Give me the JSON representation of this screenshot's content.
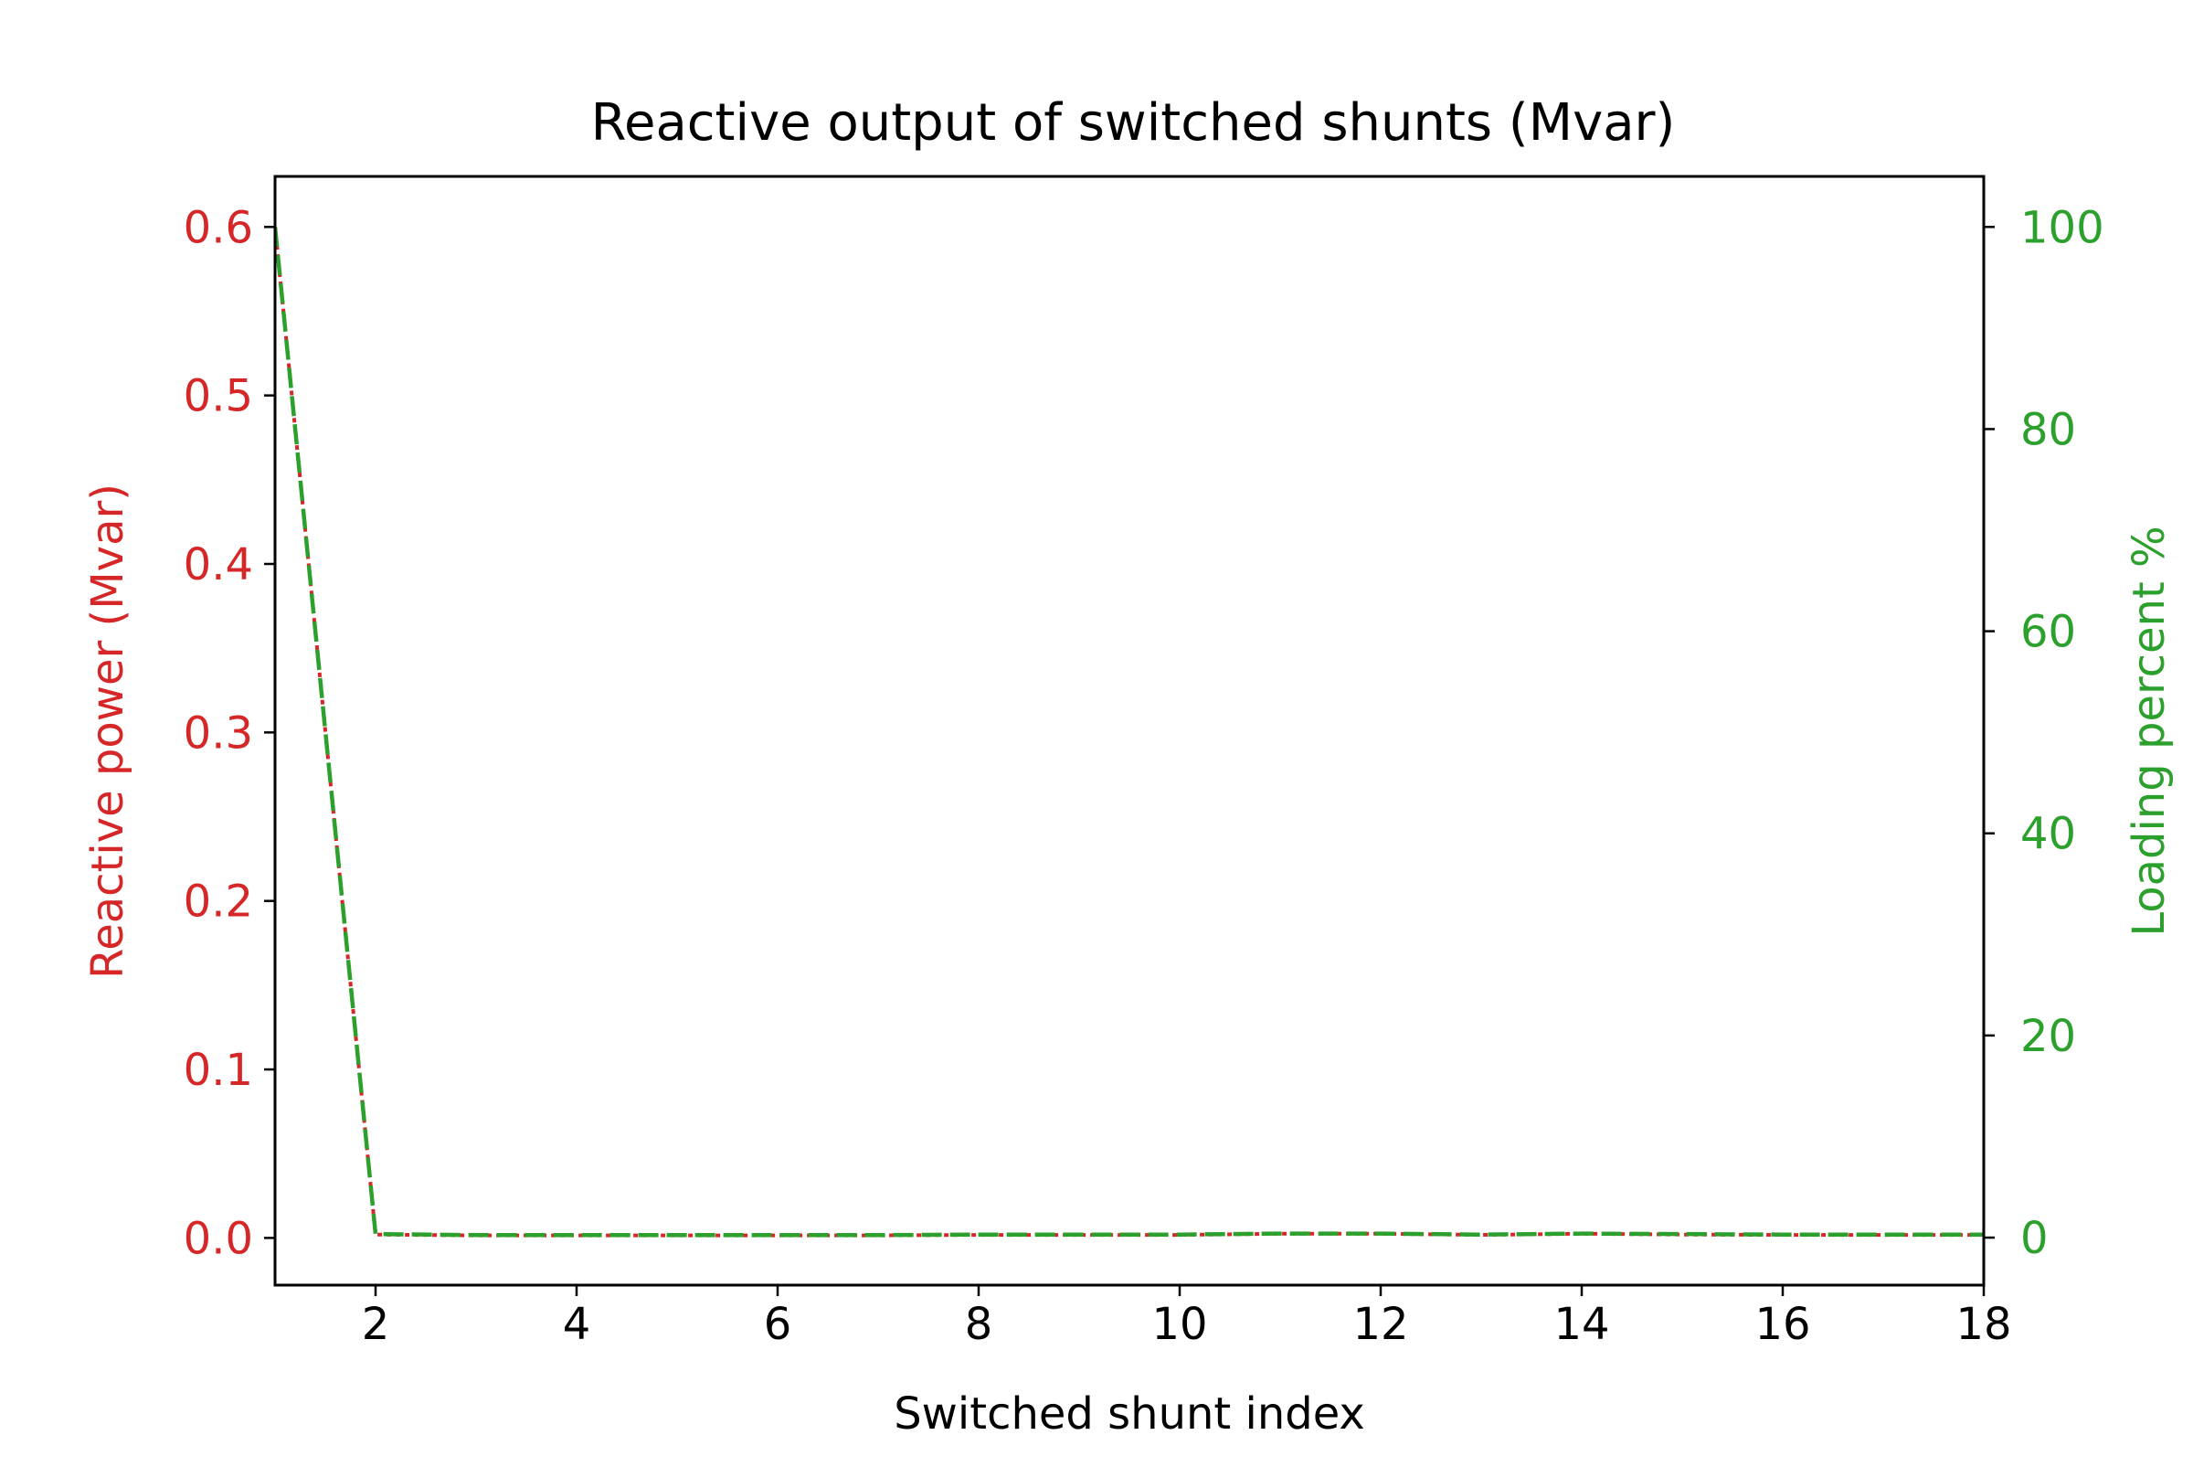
{
  "chart_data": {
    "type": "line",
    "title": "Reactive output of switched shunts (Mvar)",
    "xlabel": "Switched shunt index",
    "ylabel_left": "Reactive power (Mvar)",
    "ylabel_right": "Loading percent %",
    "xlim": [
      1,
      18
    ],
    "ylim_left": [
      -0.028,
      0.63
    ],
    "ylim_right": [
      -4.7,
      105
    ],
    "xticks": [
      2,
      4,
      6,
      8,
      10,
      12,
      14,
      16,
      18
    ],
    "xtick_labels": [
      "2",
      "4",
      "6",
      "8",
      "10",
      "12",
      "14",
      "16",
      "18"
    ],
    "yticks_left": [
      0.0,
      0.1,
      0.2,
      0.3,
      0.4,
      0.5,
      0.6
    ],
    "ytick_labels_left": [
      "0.0",
      "0.1",
      "0.2",
      "0.3",
      "0.4",
      "0.5",
      "0.6"
    ],
    "yticks_right": [
      0,
      20,
      40,
      60,
      80,
      100
    ],
    "ytick_labels_right": [
      "0",
      "20",
      "40",
      "60",
      "80",
      "100"
    ],
    "grid": false,
    "x": [
      1,
      2,
      3,
      4,
      5,
      6,
      7,
      8,
      9,
      10,
      11,
      12,
      13,
      14,
      15,
      16,
      17,
      18
    ],
    "series": [
      {
        "axis": "left",
        "color": "#d62728",
        "style": "dotted",
        "values": [
          0.6,
          0.002,
          0.0015,
          0.0015,
          0.0015,
          0.0015,
          0.0015,
          0.0018,
          0.0018,
          0.0018,
          0.0025,
          0.0025,
          0.0018,
          0.0025,
          0.002,
          0.0018,
          0.0018,
          0.0018
        ]
      },
      {
        "axis": "right",
        "color": "#2ca02c",
        "style": "dashed",
        "values": [
          100,
          0.35,
          0.25,
          0.25,
          0.25,
          0.25,
          0.25,
          0.3,
          0.3,
          0.3,
          0.4,
          0.4,
          0.3,
          0.4,
          0.35,
          0.3,
          0.3,
          0.3
        ]
      }
    ]
  }
}
